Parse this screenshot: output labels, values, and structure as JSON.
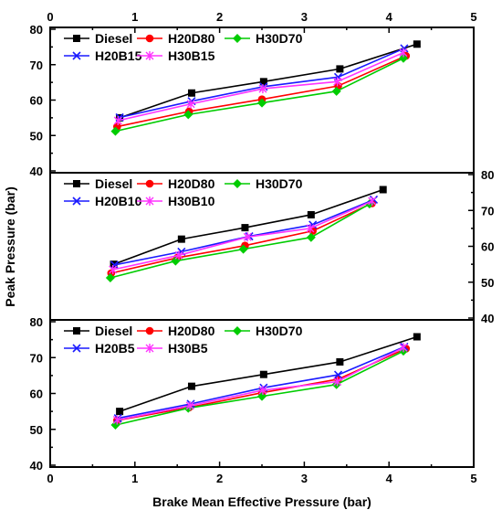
{
  "chart_data": {
    "type": "line",
    "xlabel": "Brake Mean Effective Pressure (bar)",
    "ylabel": "Peak Pressure (bar)",
    "xlim": [
      0,
      5
    ],
    "x_ticks": [
      "0",
      "1",
      "2",
      "3",
      "4",
      "5"
    ],
    "ylim": [
      40,
      80
    ],
    "y_ticks": [
      "40",
      "50",
      "60",
      "70",
      "80"
    ],
    "colors": {
      "Diesel": "#000000",
      "H20D80": "#ff0000",
      "H30D70": "#00cc00",
      "H20B": "#1a1aff",
      "H30B": "#ff33ff"
    },
    "panels": [
      {
        "y_axis_side": "left",
        "legend": [
          [
            "Diesel",
            "H20D80",
            "H30D70"
          ],
          [
            "H20B15",
            "H30B15"
          ]
        ],
        "series": [
          {
            "name": "Diesel",
            "marker": "square",
            "x": [
              0.82,
              1.67,
              2.52,
              3.42,
              4.33
            ],
            "y": [
              55,
              62,
              65.2,
              68.8,
              75.8
            ]
          },
          {
            "name": "H20D80",
            "marker": "circle",
            "x": [
              0.79,
              1.64,
              2.5,
              3.4,
              4.2
            ],
            "y": [
              52.5,
              56.8,
              60.2,
              64,
              72.5
            ]
          },
          {
            "name": "H30D70",
            "marker": "diamond",
            "x": [
              0.77,
              1.63,
              2.5,
              3.38,
              4.17
            ],
            "y": [
              51.2,
              55.9,
              59.2,
              62.5,
              71.8
            ]
          },
          {
            "name": "H20B15",
            "marker": "x",
            "x": [
              0.82,
              1.67,
              2.52,
              3.4,
              4.18
            ],
            "y": [
              55.1,
              59.7,
              63.8,
              66.5,
              74.6
            ]
          },
          {
            "name": "H30B15",
            "marker": "asterisk",
            "x": [
              0.8,
              1.66,
              2.51,
              3.39,
              4.17
            ],
            "y": [
              54.2,
              58.9,
              63.2,
              65.2,
              73.4
            ]
          }
        ]
      },
      {
        "y_axis_side": "right",
        "legend": [
          [
            "Diesel",
            "H20D80",
            "H30D70"
          ],
          [
            "H20B10",
            "H30B10"
          ]
        ],
        "series": [
          {
            "name": "Diesel",
            "marker": "square",
            "x": [
              0.75,
              1.55,
              2.3,
              3.08,
              3.93
            ],
            "y": [
              55,
              62,
              65.2,
              68.8,
              75.8
            ]
          },
          {
            "name": "H20D80",
            "marker": "circle",
            "x": [
              0.72,
              1.5,
              2.3,
              3.1,
              3.8
            ],
            "y": [
              52.5,
              56.8,
              60.2,
              64.3,
              72
            ]
          },
          {
            "name": "H30D70",
            "marker": "diamond",
            "x": [
              0.71,
              1.48,
              2.28,
              3.08,
              3.77
            ],
            "y": [
              51.2,
              55.9,
              59.2,
              62.5,
              71.8
            ]
          },
          {
            "name": "H20B10",
            "marker": "x",
            "x": [
              0.76,
              1.55,
              2.35,
              3.1,
              3.82
            ],
            "y": [
              54.8,
              58.5,
              62.8,
              66,
              73
            ]
          },
          {
            "name": "H30B10",
            "marker": "asterisk",
            "x": [
              0.74,
              1.52,
              2.33,
              3.07,
              3.8
            ],
            "y": [
              53.5,
              57.5,
              62.6,
              65,
              72.6
            ]
          }
        ]
      },
      {
        "y_axis_side": "left",
        "legend": [
          [
            "Diesel",
            "H20D80",
            "H30D70"
          ],
          [
            "H20B5",
            "H30B5"
          ]
        ],
        "series": [
          {
            "name": "Diesel",
            "marker": "square",
            "x": [
              0.82,
              1.67,
              2.52,
              3.42,
              4.33
            ],
            "y": [
              55,
              62,
              65.3,
              68.8,
              75.8
            ]
          },
          {
            "name": "H20D80",
            "marker": "circle",
            "x": [
              0.79,
              1.64,
              2.5,
              3.4,
              4.2
            ],
            "y": [
              52.5,
              56.1,
              60.2,
              64,
              72.5
            ]
          },
          {
            "name": "H30D70",
            "marker": "diamond",
            "x": [
              0.77,
              1.63,
              2.5,
              3.38,
              4.17
            ],
            "y": [
              51.2,
              55.9,
              59.2,
              62.5,
              71.8
            ]
          },
          {
            "name": "H20B5",
            "marker": "x",
            "x": [
              0.8,
              1.66,
              2.52,
              3.4,
              4.18
            ],
            "y": [
              53.1,
              57.1,
              61.6,
              65.2,
              73
            ]
          },
          {
            "name": "H30B5",
            "marker": "asterisk",
            "x": [
              0.79,
              1.65,
              2.51,
              3.39,
              4.17
            ],
            "y": [
              52.6,
              56.6,
              60.9,
              63.3,
              72.8
            ]
          }
        ]
      }
    ]
  }
}
